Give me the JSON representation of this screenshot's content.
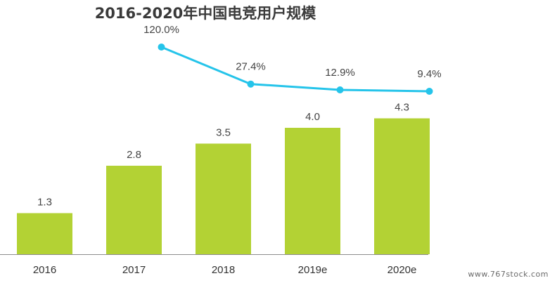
{
  "chart_data": {
    "type": "bar+line",
    "title": "2016-2020年中国电竞用户规模",
    "categories": [
      "2016",
      "2017",
      "2018",
      "2019e",
      "2020e"
    ],
    "series": [
      {
        "type": "bar",
        "values": [
          1.3,
          2.8,
          3.5,
          4.0,
          4.3
        ],
        "value_labels": [
          "1.3",
          "2.8",
          "3.5",
          "4.0",
          "4.3"
        ],
        "color": "#b3d234"
      },
      {
        "type": "line",
        "values": [
          null,
          120.0,
          27.4,
          12.9,
          9.4
        ],
        "value_labels": [
          "",
          "120.0%",
          "27.4%",
          "12.9%",
          "9.4%"
        ],
        "color": "#25c4ea"
      }
    ],
    "grid": false,
    "legend": "none"
  },
  "watermark": "www.767stock.com"
}
